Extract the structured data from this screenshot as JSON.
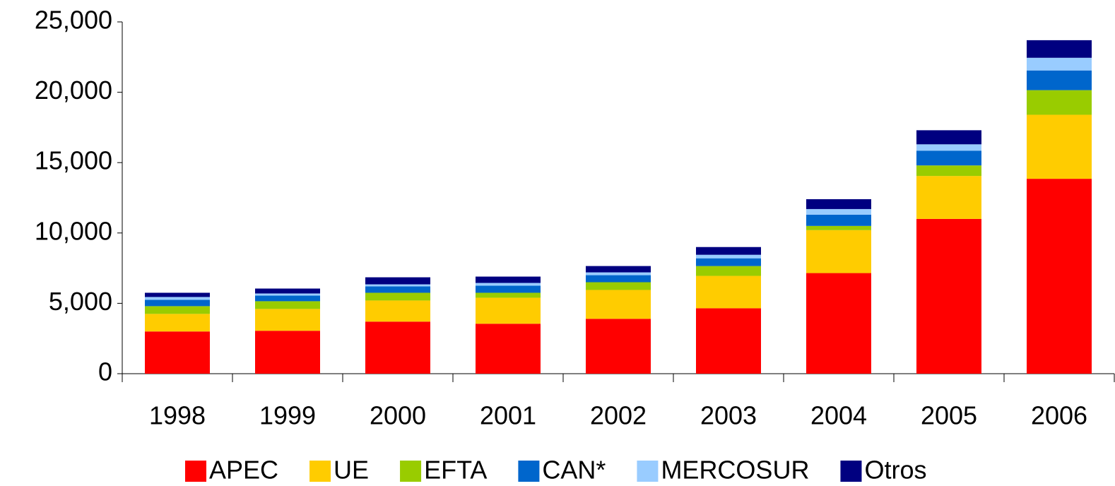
{
  "chart_data": {
    "type": "stacked_bar",
    "categories": [
      "1998",
      "1999",
      "2000",
      "2001",
      "2002",
      "2003",
      "2004",
      "2005",
      "2006"
    ],
    "series": [
      {
        "name": "APEC",
        "color": "#ff0000",
        "values": [
          3000,
          3050,
          3700,
          3550,
          3900,
          4650,
          7150,
          11000,
          13850
        ]
      },
      {
        "name": "UE",
        "color": "#ffcc00",
        "values": [
          1250,
          1550,
          1500,
          1850,
          2050,
          2300,
          3050,
          3050,
          4550
        ]
      },
      {
        "name": "EFTA",
        "color": "#99cc00",
        "values": [
          550,
          550,
          550,
          350,
          550,
          700,
          300,
          750,
          1750
        ]
      },
      {
        "name": "CAN*",
        "color": "#0066cc",
        "values": [
          450,
          400,
          450,
          500,
          500,
          550,
          800,
          1050,
          1400
        ]
      },
      {
        "name": "MERCOSUR",
        "color": "#99ccff",
        "values": [
          200,
          150,
          150,
          200,
          200,
          250,
          400,
          450,
          900
        ]
      },
      {
        "name": "Otros",
        "color": "#000080",
        "values": [
          300,
          350,
          500,
          450,
          450,
          550,
          700,
          1000,
          1250
        ]
      }
    ],
    "ylim": [
      0,
      25000
    ],
    "yticks": [
      0,
      {
        "value": 5000,
        "label": "5,000"
      },
      {
        "value": 10000,
        "label": "10,000"
      },
      {
        "value": 15000,
        "label": "15,000"
      },
      {
        "value": 20000,
        "label": "20,000"
      },
      {
        "value": 25000,
        "label": "25,000"
      }
    ],
    "legend": "bottom"
  }
}
